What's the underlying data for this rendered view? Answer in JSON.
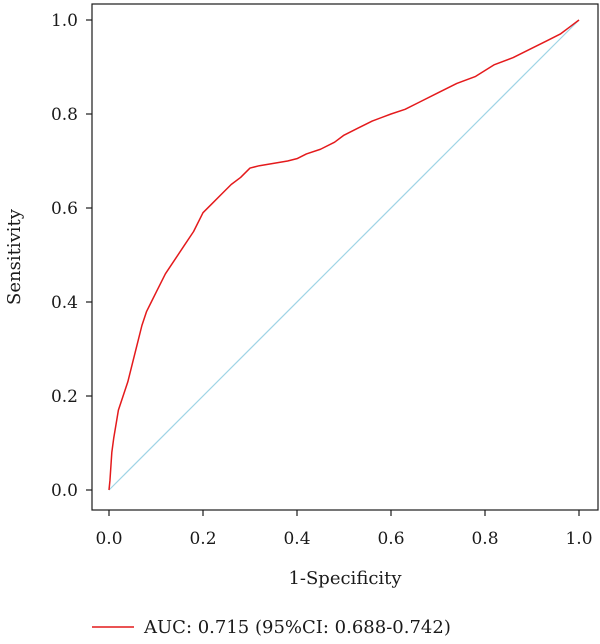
{
  "chart_data": {
    "type": "line",
    "title": "",
    "xlabel": "1-Specificity",
    "ylabel": "Sensitivity",
    "xlim": [
      0,
      1
    ],
    "ylim": [
      0,
      1
    ],
    "xticks": [
      "0.0",
      "0.2",
      "0.4",
      "0.6",
      "0.8",
      "1.0"
    ],
    "yticks": [
      "0.0",
      "0.2",
      "0.4",
      "0.6",
      "0.8",
      "1.0"
    ],
    "grid": false,
    "legend_position": "bottom",
    "series": [
      {
        "name": "AUC: 0.715 (95%CI: 0.688-0.742)",
        "color": "#e41a1c",
        "x": [
          0.0,
          0.002,
          0.004,
          0.006,
          0.01,
          0.015,
          0.02,
          0.03,
          0.04,
          0.05,
          0.06,
          0.07,
          0.08,
          0.09,
          0.1,
          0.12,
          0.14,
          0.16,
          0.18,
          0.2,
          0.22,
          0.24,
          0.26,
          0.28,
          0.3,
          0.32,
          0.35,
          0.38,
          0.4,
          0.42,
          0.45,
          0.48,
          0.5,
          0.53,
          0.56,
          0.6,
          0.63,
          0.66,
          0.7,
          0.74,
          0.78,
          0.82,
          0.86,
          0.9,
          0.93,
          0.96,
          0.98,
          1.0
        ],
        "y": [
          0.0,
          0.02,
          0.05,
          0.08,
          0.11,
          0.14,
          0.17,
          0.2,
          0.23,
          0.27,
          0.31,
          0.35,
          0.38,
          0.4,
          0.42,
          0.46,
          0.49,
          0.52,
          0.55,
          0.59,
          0.61,
          0.63,
          0.65,
          0.665,
          0.685,
          0.69,
          0.695,
          0.7,
          0.705,
          0.715,
          0.725,
          0.74,
          0.755,
          0.77,
          0.785,
          0.8,
          0.81,
          0.825,
          0.845,
          0.865,
          0.88,
          0.905,
          0.92,
          0.94,
          0.955,
          0.97,
          0.985,
          1.0
        ]
      },
      {
        "name": "",
        "color": "#9fd4e6",
        "x": [
          0,
          1
        ],
        "y": [
          0,
          1
        ]
      }
    ]
  }
}
